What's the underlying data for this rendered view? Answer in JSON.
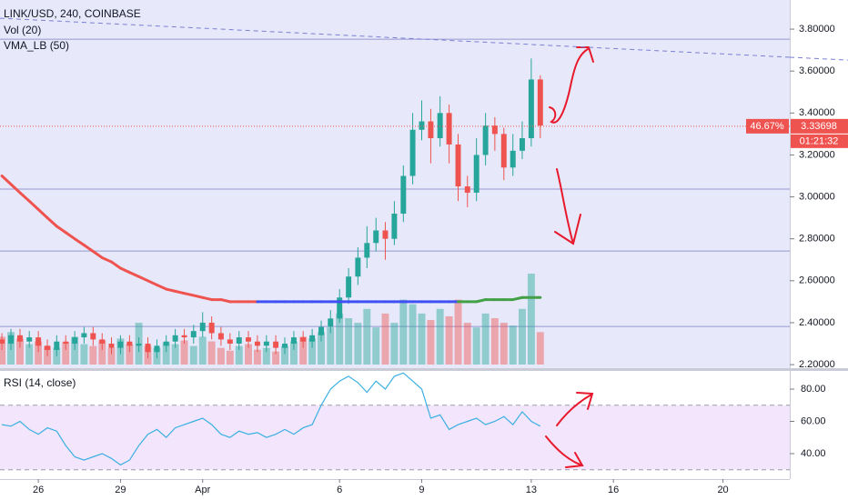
{
  "chart_data": [
    {
      "type": "candlestick",
      "title": "LINK/USD, 240, COINBASE",
      "volume_label": "Vol (20)",
      "vma_label": "VMA_LB (50)",
      "x": [
        24.67,
        25,
        25.33,
        25.67,
        26,
        26.33,
        26.67,
        27,
        27.33,
        27.67,
        28,
        28.33,
        28.67,
        29,
        29.33,
        29.67,
        30,
        30.33,
        30.67,
        31,
        31.33,
        31.67,
        32,
        32.33,
        32.67,
        33,
        33.33,
        33.67,
        34,
        34.33,
        34.67,
        35,
        35.33,
        35.67,
        36,
        36.33,
        36.67,
        37,
        37.33,
        37.67,
        38,
        38.33,
        38.67,
        39,
        39.33,
        39.67,
        40,
        40.33,
        40.67,
        41,
        41.33,
        41.67,
        42,
        42.33,
        42.67,
        43,
        43.33,
        43.67,
        44,
        44.33
      ],
      "open": [
        2.32,
        2.3,
        2.34,
        2.31,
        2.33,
        2.29,
        2.27,
        2.31,
        2.3,
        2.33,
        2.35,
        2.32,
        2.3,
        2.28,
        2.31,
        2.29,
        2.3,
        2.26,
        2.29,
        2.31,
        2.34,
        2.33,
        2.36,
        2.4,
        2.35,
        2.32,
        2.3,
        2.33,
        2.31,
        2.29,
        2.31,
        2.28,
        2.3,
        2.33,
        2.31,
        2.34,
        2.38,
        2.42,
        2.52,
        2.62,
        2.71,
        2.78,
        2.84,
        2.8,
        2.92,
        3.1,
        3.32,
        3.36,
        3.28,
        3.4,
        3.25,
        3.05,
        3.02,
        3.2,
        3.34,
        3.3,
        3.14,
        3.22,
        3.28,
        3.56
      ],
      "high": [
        2.35,
        2.37,
        2.37,
        2.36,
        2.36,
        2.32,
        2.34,
        2.34,
        2.36,
        2.38,
        2.38,
        2.35,
        2.33,
        2.34,
        2.34,
        2.33,
        2.33,
        2.32,
        2.34,
        2.37,
        2.37,
        2.39,
        2.45,
        2.43,
        2.38,
        2.35,
        2.36,
        2.36,
        2.34,
        2.34,
        2.34,
        2.33,
        2.36,
        2.36,
        2.37,
        2.41,
        2.46,
        2.56,
        2.66,
        2.76,
        2.86,
        2.9,
        2.88,
        2.98,
        3.15,
        3.4,
        3.46,
        3.42,
        3.48,
        3.44,
        3.3,
        3.1,
        3.28,
        3.4,
        3.38,
        3.33,
        3.3,
        3.36,
        3.66,
        3.58
      ],
      "low": [
        2.27,
        2.27,
        2.28,
        2.28,
        2.26,
        2.24,
        2.24,
        2.27,
        2.27,
        2.3,
        2.29,
        2.27,
        2.25,
        2.25,
        2.26,
        2.26,
        2.23,
        2.23,
        2.26,
        2.28,
        2.3,
        2.3,
        2.33,
        2.32,
        2.29,
        2.27,
        2.27,
        2.28,
        2.26,
        2.26,
        2.25,
        2.25,
        2.27,
        2.28,
        2.28,
        2.31,
        2.35,
        2.4,
        2.49,
        2.58,
        2.66,
        2.74,
        2.7,
        2.77,
        2.88,
        3.06,
        3.27,
        3.16,
        3.24,
        3.16,
        2.98,
        2.95,
        2.98,
        3.15,
        3.22,
        3.08,
        3.1,
        3.18,
        3.24,
        3.28
      ],
      "close": [
        2.3,
        2.34,
        2.31,
        2.33,
        2.29,
        2.27,
        2.31,
        2.3,
        2.33,
        2.35,
        2.32,
        2.3,
        2.28,
        2.31,
        2.29,
        2.3,
        2.26,
        2.29,
        2.31,
        2.34,
        2.33,
        2.36,
        2.4,
        2.35,
        2.32,
        2.3,
        2.33,
        2.31,
        2.29,
        2.31,
        2.28,
        2.3,
        2.33,
        2.31,
        2.34,
        2.38,
        2.42,
        2.52,
        2.62,
        2.71,
        2.78,
        2.84,
        2.8,
        2.92,
        3.1,
        3.32,
        3.36,
        3.28,
        3.4,
        3.25,
        3.05,
        3.02,
        3.2,
        3.34,
        3.3,
        3.14,
        3.22,
        3.28,
        3.56,
        3.34
      ],
      "volume": [
        30,
        35,
        28,
        22,
        25,
        20,
        18,
        24,
        30,
        22,
        20,
        26,
        18,
        28,
        22,
        45,
        20,
        18,
        24,
        22,
        26,
        20,
        30,
        25,
        18,
        15,
        20,
        22,
        16,
        18,
        14,
        20,
        25,
        30,
        28,
        35,
        40,
        55,
        50,
        45,
        60,
        40,
        55,
        45,
        70,
        65,
        55,
        48,
        60,
        52,
        70,
        45,
        40,
        55,
        50,
        45,
        42,
        60,
        98,
        35
      ],
      "vma": [
        3.1,
        3.06,
        3.02,
        2.98,
        2.94,
        2.9,
        2.86,
        2.83,
        2.8,
        2.77,
        2.74,
        2.71,
        2.69,
        2.66,
        2.64,
        2.62,
        2.6,
        2.58,
        2.56,
        2.55,
        2.54,
        2.53,
        2.52,
        2.51,
        2.51,
        2.5,
        2.5,
        2.5,
        2.5,
        2.5,
        2.5,
        2.5,
        2.5,
        2.5,
        2.5,
        2.5,
        2.5,
        2.5,
        2.5,
        2.5,
        2.5,
        2.5,
        2.5,
        2.5,
        2.5,
        2.5,
        2.5,
        2.5,
        2.5,
        2.5,
        2.5,
        2.5,
        2.5,
        2.51,
        2.51,
        2.51,
        2.51,
        2.52,
        2.52,
        2.52
      ],
      "vma_colors": [
        "#ef5350",
        "#ef5350",
        "#ef5350",
        "#ef5350",
        "#ef5350",
        "#ef5350",
        "#ef5350",
        "#ef5350",
        "#ef5350",
        "#ef5350",
        "#ef5350",
        "#ef5350",
        "#ef5350",
        "#ef5350",
        "#ef5350",
        "#ef5350",
        "#ef5350",
        "#ef5350",
        "#ef5350",
        "#ef5350",
        "#ef5350",
        "#ef5350",
        "#ef5350",
        "#ef5350",
        "#ef5350",
        "#ef5350",
        "#ef5350",
        "#ef5350",
        "#ef5350",
        "#3f51f5",
        "#3f51f5",
        "#3f51f5",
        "#3f51f5",
        "#3f51f5",
        "#3f51f5",
        "#3f51f5",
        "#3f51f5",
        "#3f51f5",
        "#3f51f5",
        "#3f51f5",
        "#3f51f5",
        "#3f51f5",
        "#3f51f5",
        "#3f51f5",
        "#3f51f5",
        "#3f51f5",
        "#3f51f5",
        "#3f51f5",
        "#3f51f5",
        "#3f51f5",
        "#3f51f5",
        "#43a047",
        "#43a047",
        "#43a047",
        "#43a047",
        "#43a047",
        "#43a047",
        "#43a047",
        "#43a047",
        "#43a047"
      ],
      "up_color": "#26a69a",
      "down_color": "#ef5350",
      "hlines": [
        3.752,
        3.037,
        2.742,
        2.382
      ],
      "hline_color": "#9598d0",
      "trendline": {
        "x": [
          24.6,
          53.44
        ],
        "values": [
          3.852,
          3.666
        ]
      },
      "current_price": 3.33698,
      "change_label": "46.67%",
      "countdown": "01:21:32",
      "xlim": [
        24.6,
        53.44
      ],
      "ylim": [
        2.183,
        3.939
      ],
      "yticks": [
        {
          "value": 2.2,
          "label": "2.20000"
        },
        {
          "value": 2.4,
          "label": "2.40000"
        },
        {
          "value": 2.6,
          "label": "2.60000"
        },
        {
          "value": 2.8,
          "label": "2.80000"
        },
        {
          "value": 3.0,
          "label": "3.00000"
        },
        {
          "value": 3.2,
          "label": "3.20000"
        },
        {
          "value": 3.4,
          "label": "3.40000"
        },
        {
          "value": 3.6,
          "label": "3.60000"
        },
        {
          "value": 3.8,
          "label": "3.80000"
        }
      ],
      "xticks": [
        26,
        29,
        {
          "value": 32,
          "label": "Apr"
        },
        {
          "value": 37,
          "label": "6"
        },
        {
          "value": 40,
          "label": "9"
        },
        {
          "value": 44,
          "label": "13"
        },
        {
          "value": 47,
          "label": "16"
        },
        {
          "value": 51,
          "label": "20"
        }
      ],
      "grid": false
    },
    {
      "type": "line",
      "title": "RSI (14, close)",
      "x": [
        24.67,
        25,
        25.33,
        25.67,
        26,
        26.33,
        26.67,
        27,
        27.33,
        27.67,
        28,
        28.33,
        28.67,
        29,
        29.33,
        29.67,
        30,
        30.33,
        30.67,
        31,
        31.33,
        31.67,
        32,
        32.33,
        32.67,
        33,
        33.33,
        33.67,
        34,
        34.33,
        34.67,
        35,
        35.33,
        35.67,
        36,
        36.33,
        36.67,
        37,
        37.33,
        37.67,
        38,
        38.33,
        38.67,
        39,
        39.33,
        39.67,
        40,
        40.33,
        40.67,
        41,
        41.33,
        41.67,
        42,
        42.33,
        42.67,
        43,
        43.33,
        43.67,
        44,
        44.33
      ],
      "values": [
        58,
        57,
        60,
        55,
        52,
        56,
        54,
        45,
        38,
        36,
        38,
        40,
        37,
        33,
        36,
        45,
        52,
        55,
        50,
        56,
        58,
        60,
        62,
        58,
        52,
        50,
        54,
        52,
        53,
        50,
        52,
        55,
        52,
        56,
        58,
        70,
        80,
        85,
        88,
        84,
        78,
        85,
        80,
        88,
        90,
        85,
        80,
        62,
        64,
        55,
        58,
        60,
        62,
        58,
        60,
        63,
        58,
        66,
        60,
        57
      ],
      "color": "#3ab0e2",
      "bands": [
        30,
        70
      ],
      "band_color": "#f3e6fc",
      "xlim": [
        24.6,
        53.44
      ],
      "ylim": [
        24.2,
        91.3
      ],
      "yticks": [
        {
          "value": 40,
          "label": "40.00"
        },
        {
          "value": 60,
          "label": "60.00"
        },
        {
          "value": 80,
          "label": "80.00"
        }
      ]
    }
  ]
}
